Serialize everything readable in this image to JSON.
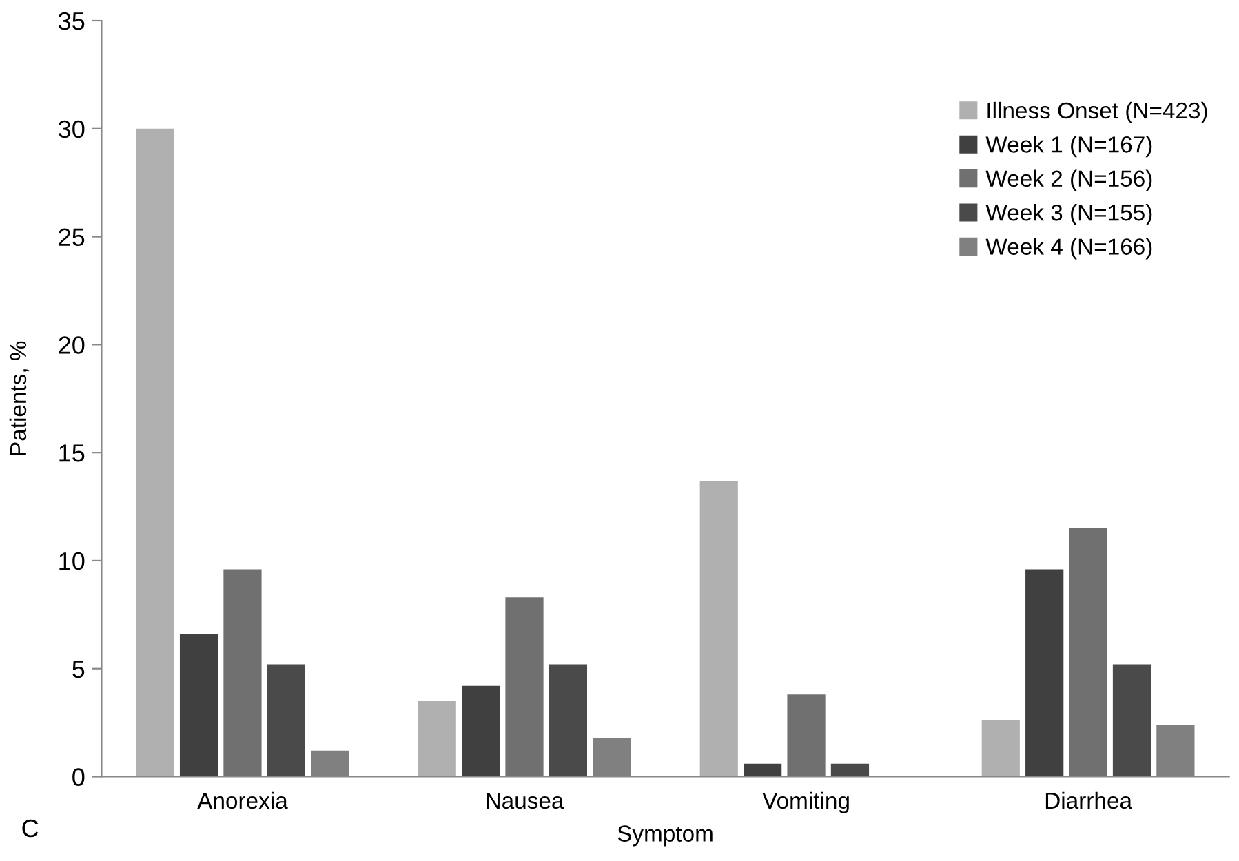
{
  "chart_data": {
    "type": "bar",
    "xlabel": "Symptom",
    "ylabel": "Patients, %",
    "categories": [
      "Anorexia",
      "Nausea",
      "Vomiting",
      "Diarrhea"
    ],
    "series": [
      {
        "name": "Illness Onset (N=423)",
        "color": "#b0b0b0",
        "values": [
          30,
          3.5,
          13.7,
          2.6
        ]
      },
      {
        "name": "Week 1 (N=167)",
        "color": "#404040",
        "values": [
          6.6,
          4.2,
          0.6,
          9.6
        ]
      },
      {
        "name": "Week 2 (N=156)",
        "color": "#707070",
        "values": [
          9.6,
          8.3,
          3.8,
          11.5
        ]
      },
      {
        "name": "Week 3 (N=155)",
        "color": "#4a4a4a",
        "values": [
          5.2,
          5.2,
          0.6,
          5.2
        ]
      },
      {
        "name": "Week 4 (N=166)",
        "color": "#808080",
        "values": [
          1.2,
          1.8,
          0,
          2.4
        ]
      }
    ],
    "ylim": [
      0,
      35
    ],
    "yticks": [
      0,
      5,
      10,
      15,
      20,
      25,
      30,
      35
    ],
    "grid": false,
    "legend": "top right",
    "annotations": [
      "C"
    ]
  }
}
